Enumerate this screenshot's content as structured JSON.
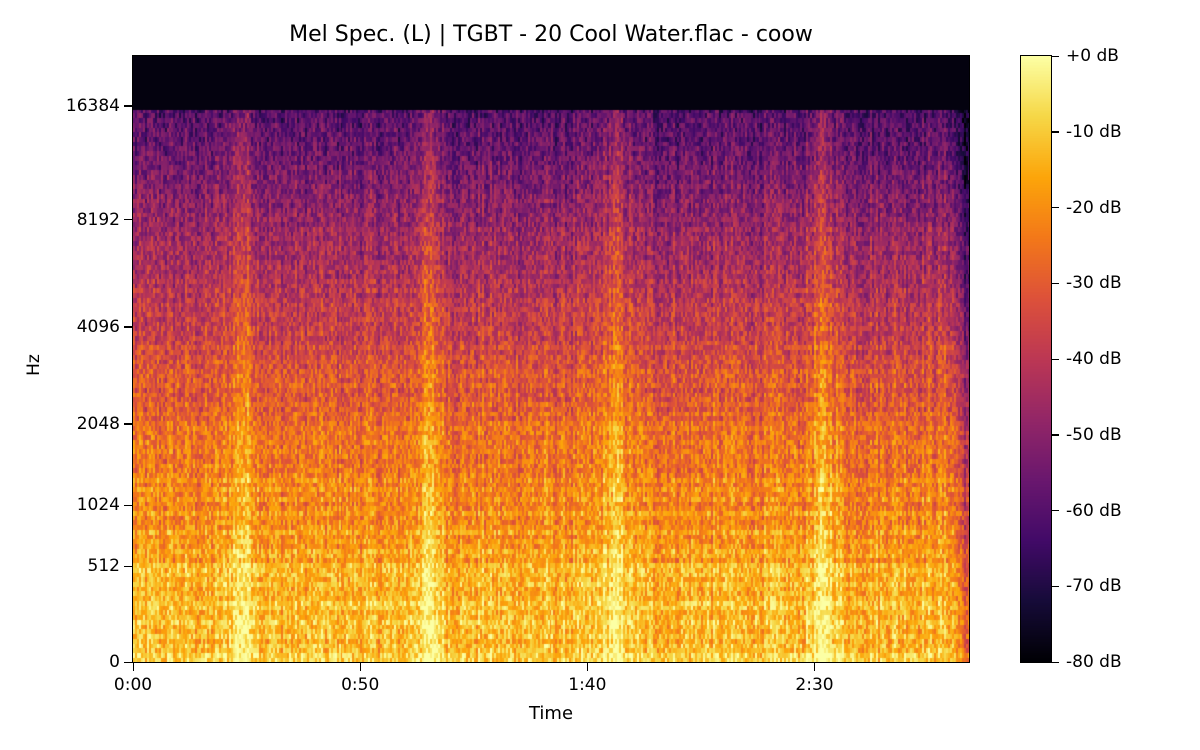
{
  "chart_data": {
    "type": "heatmap",
    "subtype": "mel-spectrogram",
    "title": "Mel Spec. (L) | TGBT - 20 Cool Water.flac - coow",
    "xlabel": "Time",
    "ylabel": "Hz",
    "x_ticks": [
      {
        "label": "0:00",
        "seconds": 0
      },
      {
        "label": "0:50",
        "seconds": 50
      },
      {
        "label": "1:40",
        "seconds": 100
      },
      {
        "label": "2:30",
        "seconds": 150
      }
    ],
    "x_range_seconds": [
      0,
      184
    ],
    "y_scale": "mel",
    "y_ticks": [
      {
        "label": "16384",
        "hz": 16384
      },
      {
        "label": "8192",
        "hz": 8192
      },
      {
        "label": "4096",
        "hz": 4096
      },
      {
        "label": "2048",
        "hz": 2048
      },
      {
        "label": "1024",
        "hz": 1024
      },
      {
        "label": "512",
        "hz": 512
      },
      {
        "label": "0",
        "hz": 0
      }
    ],
    "y_range_hz": [
      0,
      22050
    ],
    "colormap": "inferno",
    "colorbar": {
      "range_db": [
        -80,
        0
      ],
      "ticks": [
        "+0 dB",
        "-10 dB",
        "-20 dB",
        "-30 dB",
        "-40 dB",
        "-50 dB",
        "-60 dB",
        "-70 dB",
        "-80 dB"
      ],
      "tick_values": [
        0,
        -10,
        -20,
        -30,
        -40,
        -50,
        -60,
        -70,
        -80
      ]
    },
    "features": {
      "lowpass_cutoff_hz": 16000,
      "energy_bursts_seconds": [
        24,
        65,
        106,
        152
      ],
      "fade_out_start_seconds": 180
    }
  }
}
